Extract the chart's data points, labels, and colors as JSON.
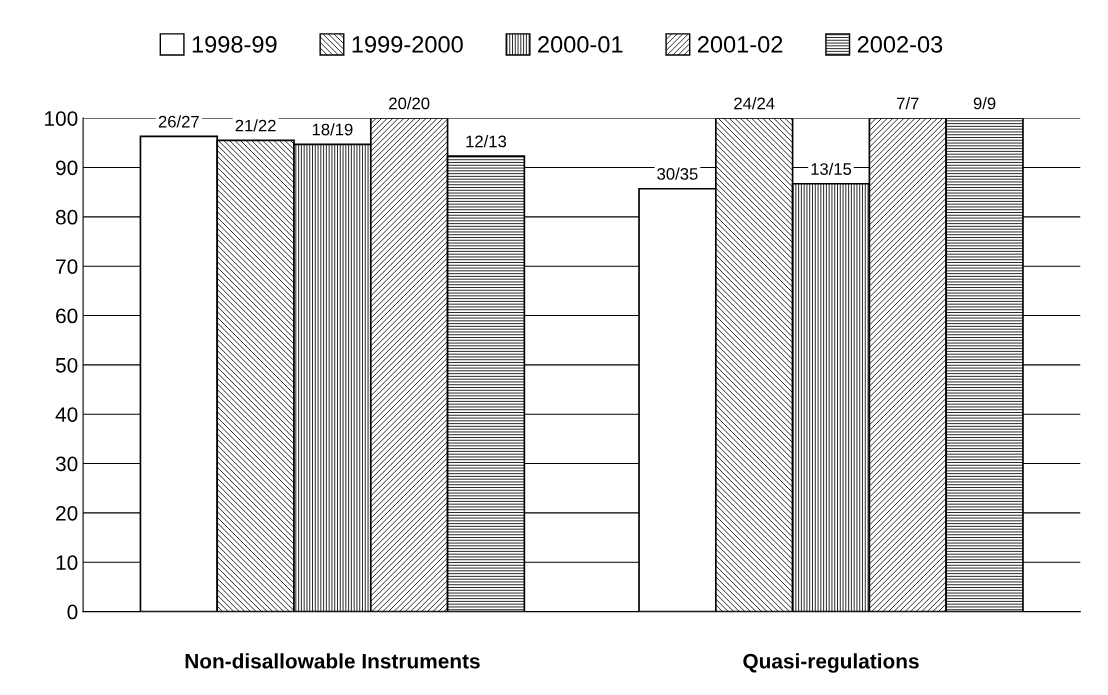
{
  "chart_data": {
    "type": "bar",
    "categories": [
      "Non-disallowable Instruments",
      "Quasi-regulations"
    ],
    "series": [
      {
        "name": "1998-99",
        "color": "#ffffff",
        "values": [
          96.3,
          85.7
        ],
        "value_labels": [
          "26/27",
          "30/35"
        ]
      },
      {
        "name": "1999-2000",
        "color": "#000000",
        "values": [
          95.5,
          100
        ],
        "value_labels": [
          "21/22",
          "24/24"
        ]
      },
      {
        "name": "2000-01",
        "color": "#000000",
        "values": [
          94.7,
          86.7
        ],
        "value_labels": [
          "18/19",
          "13/15"
        ]
      },
      {
        "name": "2001-02",
        "color": "#000000",
        "values": [
          100,
          100
        ],
        "value_labels": [
          "20/20",
          "7/7"
        ]
      },
      {
        "name": "2002-03",
        "color": "#000000",
        "values": [
          92.3,
          100
        ],
        "value_labels": [
          "12/13",
          "9/9"
        ]
      }
    ],
    "ylim": [
      0,
      100
    ],
    "yticks": [
      0,
      10,
      20,
      30,
      40,
      50,
      60,
      70,
      80,
      90,
      100
    ],
    "grid": "y",
    "legend": "top"
  }
}
